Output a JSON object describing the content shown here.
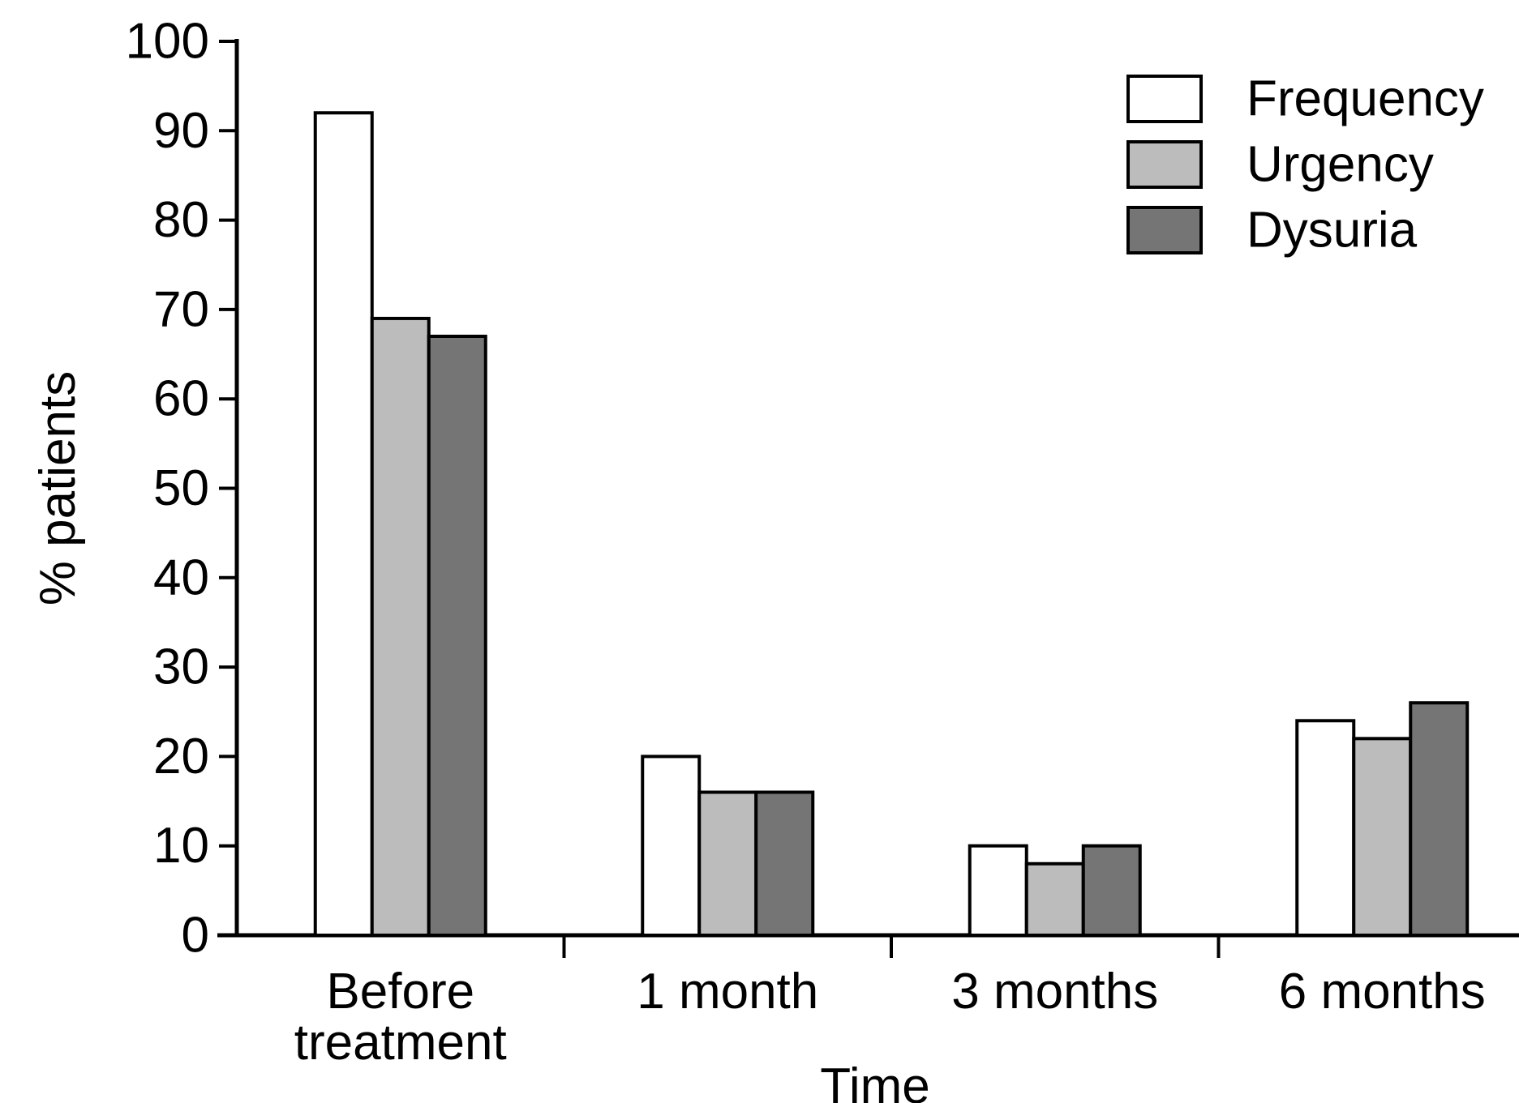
{
  "chart_data": {
    "type": "bar",
    "title": "",
    "categories": [
      "Before treatment",
      "1 month",
      "3 months",
      "6 months"
    ],
    "categories_display": [
      [
        "Before",
        "treatment"
      ],
      [
        "1 month"
      ],
      [
        "3 months"
      ],
      [
        "6 months"
      ]
    ],
    "series": [
      {
        "name": "Frequency",
        "color": "#ffffff",
        "values": [
          92,
          20,
          10,
          24
        ]
      },
      {
        "name": "Urgency",
        "color": "#bcbcbc",
        "values": [
          69,
          16,
          8,
          22
        ]
      },
      {
        "name": "Dysuria",
        "color": "#757575",
        "values": [
          67,
          16,
          10,
          26
        ]
      }
    ],
    "xlabel": "Time",
    "ylabel": "% patients",
    "ylim": [
      0,
      100
    ],
    "yticks": [
      0,
      10,
      20,
      30,
      40,
      50,
      60,
      70,
      80,
      90,
      100
    ],
    "grid": false,
    "legend_position": "top-right",
    "ink_color": "#000000",
    "bar_edge_color": "#000000"
  }
}
